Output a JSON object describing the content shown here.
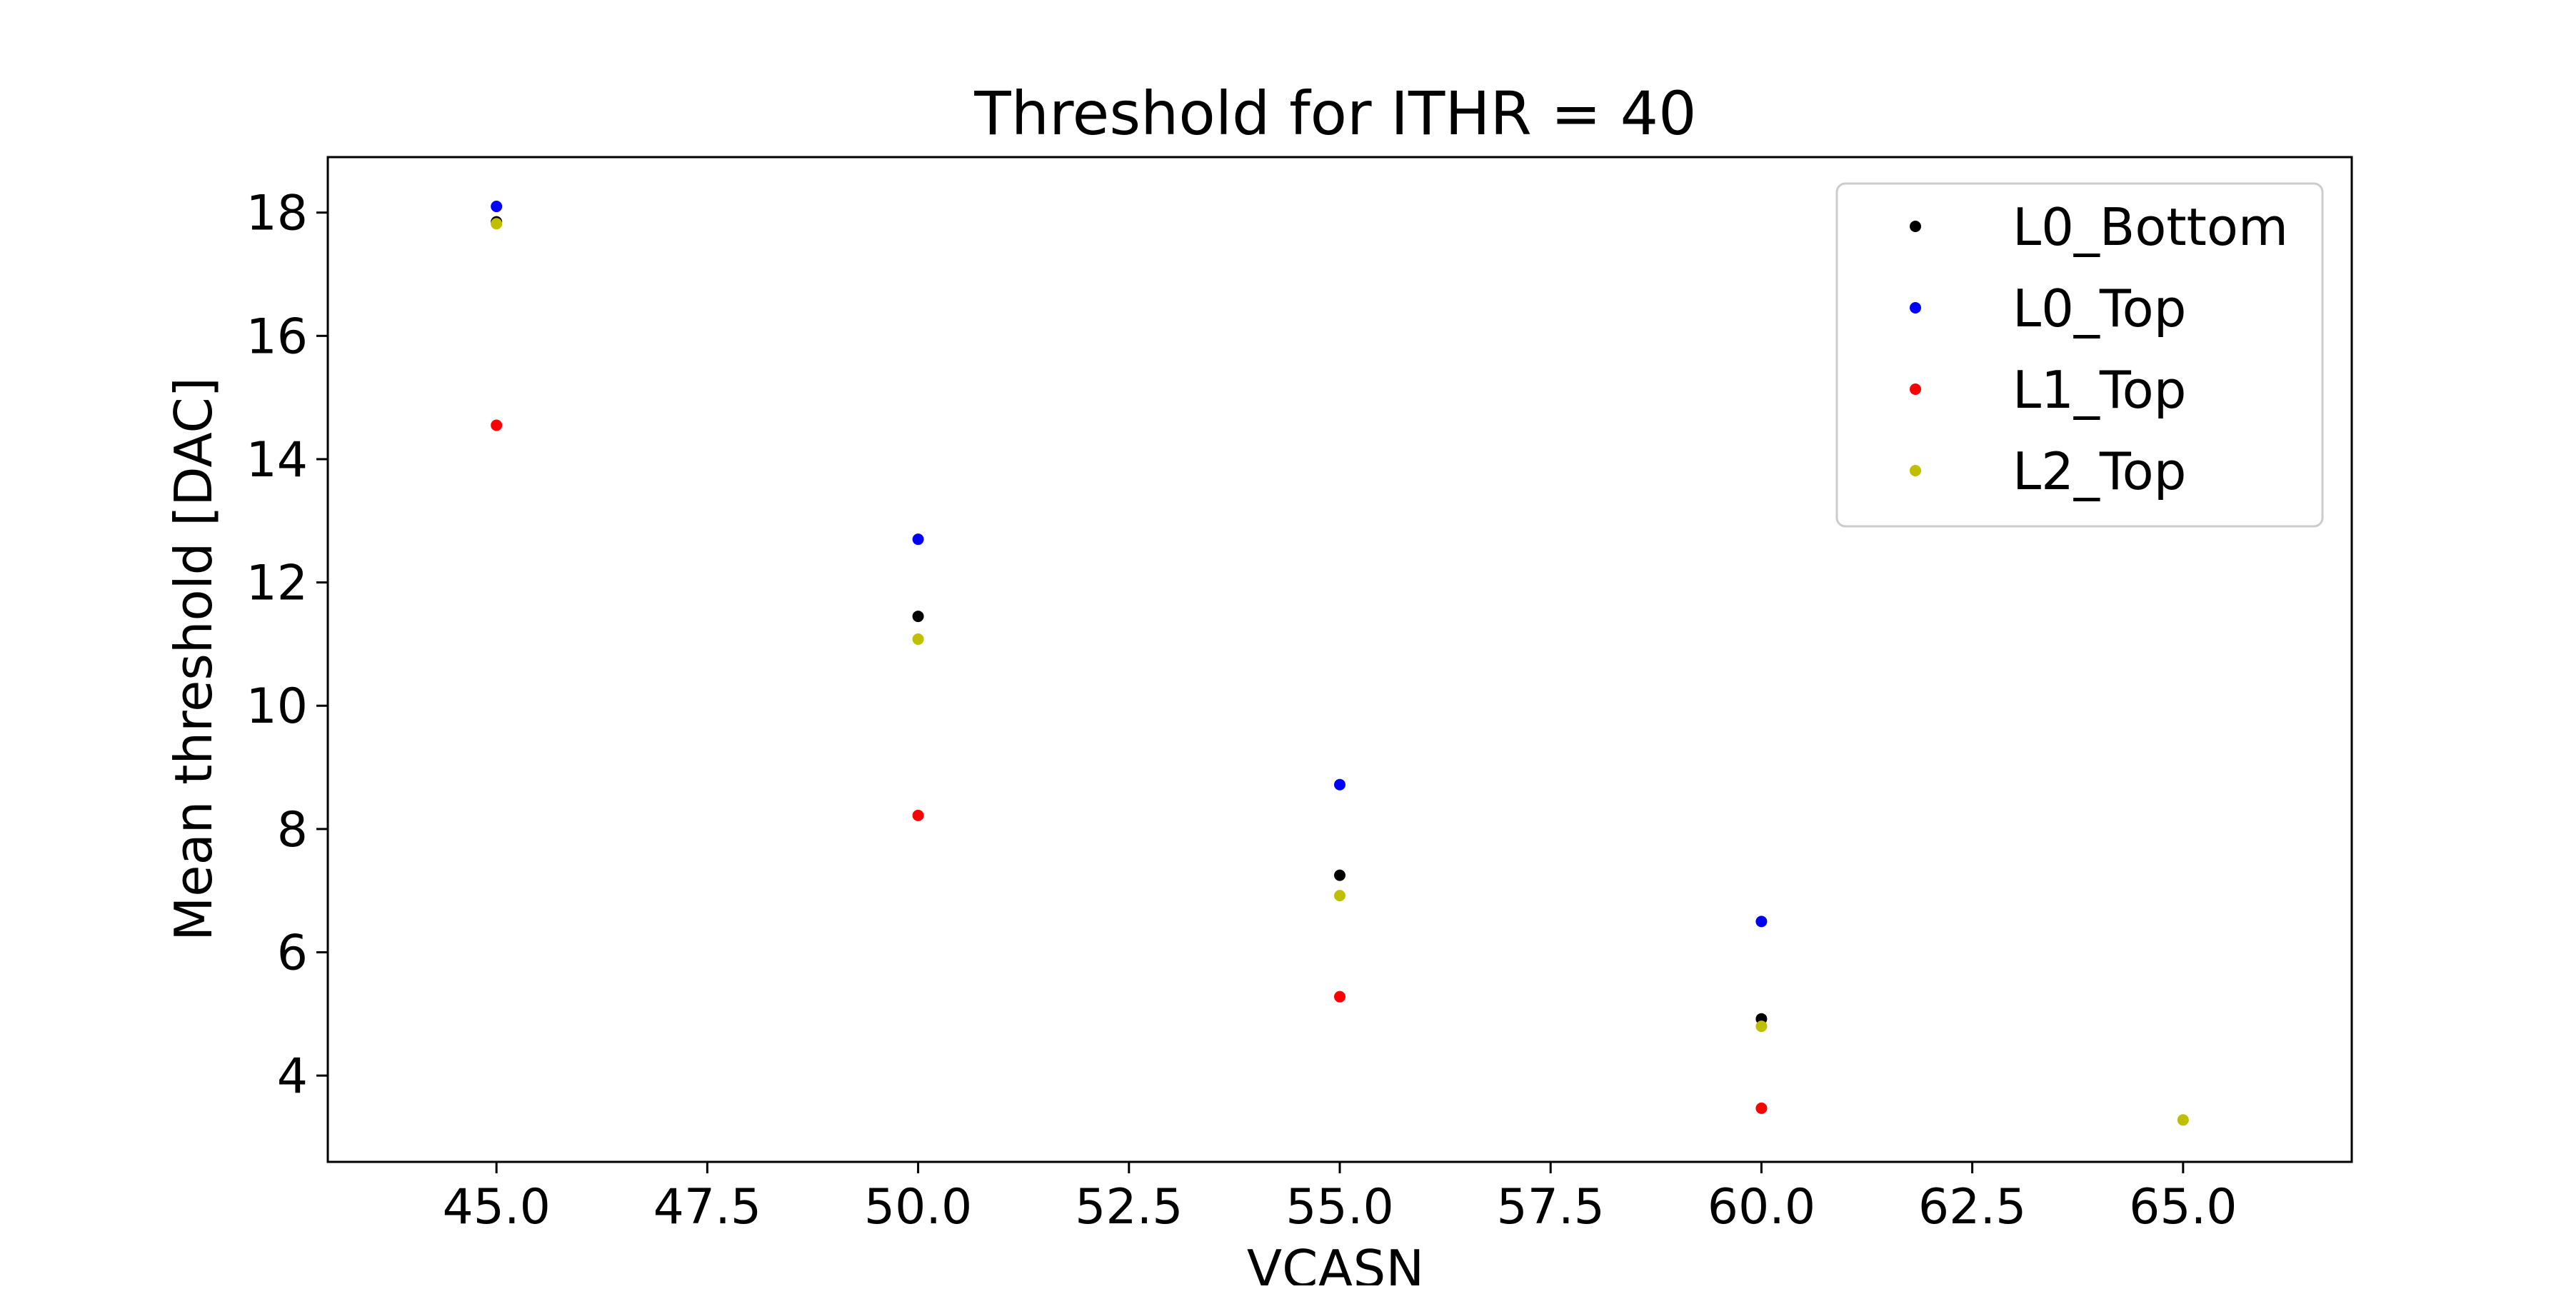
{
  "chart_data": {
    "type": "scatter",
    "title": "Threshold for ITHR = 40",
    "xlabel": "VCASN",
    "ylabel": "Mean threshold [DAC]",
    "xlim": [
      43.0,
      67.0
    ],
    "ylim": [
      2.6,
      18.9
    ],
    "xticks": [
      45.0,
      47.5,
      50.0,
      52.5,
      55.0,
      57.5,
      60.0,
      62.5,
      65.0
    ],
    "xtick_labels": [
      "45.0",
      "47.5",
      "50.0",
      "52.5",
      "55.0",
      "57.5",
      "60.0",
      "62.5",
      "65.0"
    ],
    "yticks": [
      4,
      6,
      8,
      10,
      12,
      14,
      16,
      18
    ],
    "ytick_labels": [
      "4",
      "6",
      "8",
      "10",
      "12",
      "14",
      "16",
      "18"
    ],
    "grid": false,
    "legend_position": "top-right",
    "series": [
      {
        "name": "L0_Bottom",
        "color": "#000000",
        "x": [
          45,
          50,
          55,
          60
        ],
        "y": [
          17.85,
          11.45,
          7.25,
          4.92
        ]
      },
      {
        "name": "L0_Top",
        "color": "#0000ff",
        "x": [
          45,
          50,
          55,
          60
        ],
        "y": [
          18.1,
          12.7,
          8.72,
          6.5
        ]
      },
      {
        "name": "L1_Top",
        "color": "#ff0000",
        "x": [
          45,
          50,
          55,
          60
        ],
        "y": [
          14.55,
          8.22,
          5.28,
          3.47
        ]
      },
      {
        "name": "L2_Top",
        "color": "#bfbf00",
        "x": [
          45,
          50,
          55,
          60,
          65
        ],
        "y": [
          17.82,
          11.08,
          6.92,
          4.8,
          3.28
        ]
      }
    ]
  }
}
